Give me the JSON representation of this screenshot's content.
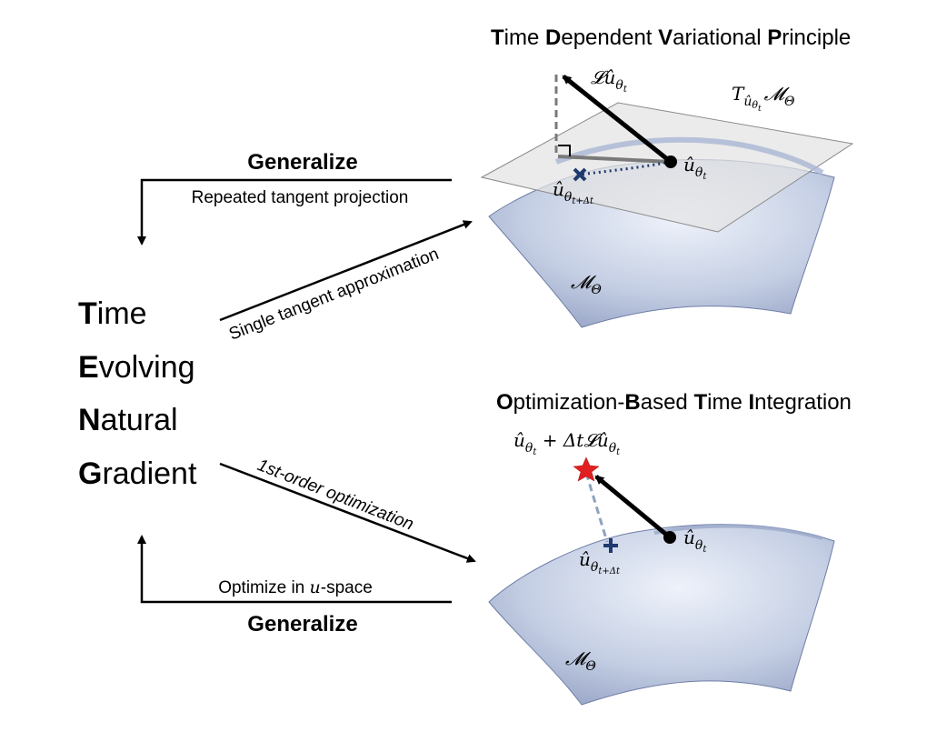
{
  "tevng": {
    "lines": [
      {
        "first": "T",
        "rest": "ime"
      },
      {
        "first": "E",
        "rest": "volving"
      },
      {
        "first": "N",
        "rest": "atural"
      },
      {
        "first": "G",
        "rest": "radient"
      }
    ]
  },
  "top_panel": {
    "title": [
      {
        "first": "T",
        "rest": "ime "
      },
      {
        "first": "D",
        "rest": "ependent "
      },
      {
        "first": "V",
        "rest": "ariational "
      },
      {
        "first": "P",
        "rest": "rinciple"
      }
    ],
    "generalize_label": "Generalize",
    "repeated_label": "Repeated tangent projection",
    "single_tangent_label": "Single tangent approximation",
    "manifold_label": "𝓜",
    "manifold_sub": "Θ",
    "tangent_label": "T",
    "tangent_sub": "û",
    "tangent_subsub": "θ",
    "tangent_subsubsub": "t",
    "tangent_m": "𝓜",
    "tangent_m_sub": "Θ",
    "arrow_label": "𝓛û",
    "arrow_sub": "θ",
    "arrow_subsub": "t",
    "point_label": "û",
    "point_sub": "θ",
    "point_subsub": "t",
    "next_label": "û",
    "next_sub": "θ",
    "next_subsub": "t+Δt"
  },
  "bottom_panel": {
    "title": [
      {
        "first": "O",
        "rest": "ptimization-"
      },
      {
        "first": "B",
        "rest": "ased "
      },
      {
        "first": "T",
        "rest": "ime "
      },
      {
        "first": "I",
        "rest": "ntegration"
      }
    ],
    "generalize_label": "Generalize",
    "optimize_label_pre": "Optimize in ",
    "optimize_label_var": "u",
    "optimize_label_post": "-space",
    "first_order_label": "1st-order optimization",
    "manifold_label": "𝓜",
    "manifold_sub": "Θ",
    "star_label_a": "û",
    "star_label_a_sub": "θ",
    "star_label_a_subsub": "t",
    "star_label_b": " + Δt𝓛û",
    "star_label_b_sub": "θ",
    "star_label_b_subsub": "t",
    "point_label": "û",
    "point_sub": "θ",
    "point_subsub": "t",
    "next_label": "û",
    "next_sub": "θ",
    "next_subsub": "t+Δt"
  },
  "colors": {
    "surface_light": "#dfe6f3",
    "surface_dark": "#8d9bc0",
    "plane": "#e6e6e6",
    "cross": "#1f3a6e",
    "star": "#e02020",
    "arrow": "#000000",
    "dashed": "#7a7a7a",
    "dashed_blue": "#8fa2bf"
  }
}
